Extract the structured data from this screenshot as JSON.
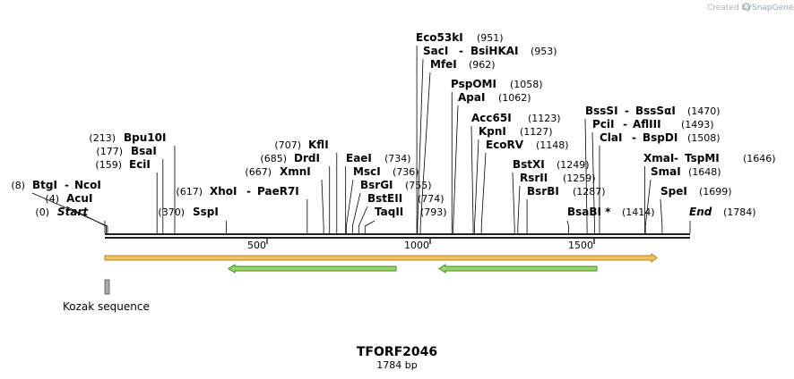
{
  "credit": {
    "prefix": "Created by",
    "brand": "SnapGene"
  },
  "plasmid": {
    "name": "TFORF2046",
    "length_label": "1784 bp",
    "length": 1784
  },
  "ruler": {
    "ticks": [
      "500",
      "1000",
      "1500"
    ]
  },
  "sites": [
    {
      "label": "Start",
      "pos": "(0)",
      "italic": true
    },
    {
      "label": "AcuI",
      "pos": "(4)"
    },
    {
      "label": "BtgI",
      "label2": "NcoI",
      "pos": "(8)"
    },
    {
      "label": "EciI",
      "pos": "(159)"
    },
    {
      "label": "BsaI",
      "pos": "(177)"
    },
    {
      "label": "Bpu10I",
      "pos": "(213)"
    },
    {
      "label": "SspI",
      "pos": "(370)"
    },
    {
      "label": "XhoI",
      "label2": "PaeR7I",
      "pos": "(617)"
    },
    {
      "label": "XmnI",
      "pos": "(667)"
    },
    {
      "label": "DrdI",
      "pos": "(685)"
    },
    {
      "label": "KflI",
      "pos": "(707)"
    },
    {
      "label": "EaeI",
      "pos": "(734)"
    },
    {
      "label": "MscI",
      "pos": "(736)"
    },
    {
      "label": "BsrGI",
      "pos": "(755)"
    },
    {
      "label": "BstEII",
      "pos": "(774)"
    },
    {
      "label": "TaqII",
      "pos": "(793)"
    },
    {
      "label": "Eco53kI",
      "pos": "(951)"
    },
    {
      "label": "SacI",
      "label2": "BsiHKAI",
      "pos": "(953)"
    },
    {
      "label": "MfeI",
      "pos": "(962)"
    },
    {
      "label": "PspOMI",
      "pos": "(1058)"
    },
    {
      "label": "ApaI",
      "pos": "(1062)"
    },
    {
      "label": "Acc65I",
      "pos": "(1123)"
    },
    {
      "label": "KpnI",
      "pos": "(1127)"
    },
    {
      "label": "EcoRV",
      "pos": "(1148)"
    },
    {
      "label": "BstXI",
      "pos": "(1249)"
    },
    {
      "label": "RsrII",
      "pos": "(1259)"
    },
    {
      "label": "BsrBI",
      "pos": "(1287)"
    },
    {
      "label": "BsaBI *",
      "pos": "(1414)"
    },
    {
      "label": "BssSI",
      "label2": "BssSαI",
      "pos": "(1470)"
    },
    {
      "label": "PciI",
      "label2": "AflIII",
      "pos": "(1493)"
    },
    {
      "label": "ClaI",
      "label2": "BspDI",
      "pos": "(1508)"
    },
    {
      "label": "XmaI",
      "label2": "TspMI",
      "pos": "(1646)"
    },
    {
      "label": "SmaI",
      "pos": "(1648)"
    },
    {
      "label": "SpeI",
      "pos": "(1699)"
    },
    {
      "label": "End",
      "pos": "(1784)",
      "italic": true
    }
  ],
  "features": [
    {
      "label": "Kozak sequence"
    }
  ],
  "colors": {
    "orf_fill": "#f3c06a",
    "orf_stroke": "#b98412",
    "green_fill": "#9bd66c",
    "green_stroke": "#3f8f1f",
    "kozak_fill": "#aaaaaa",
    "backbone": "#222222"
  }
}
